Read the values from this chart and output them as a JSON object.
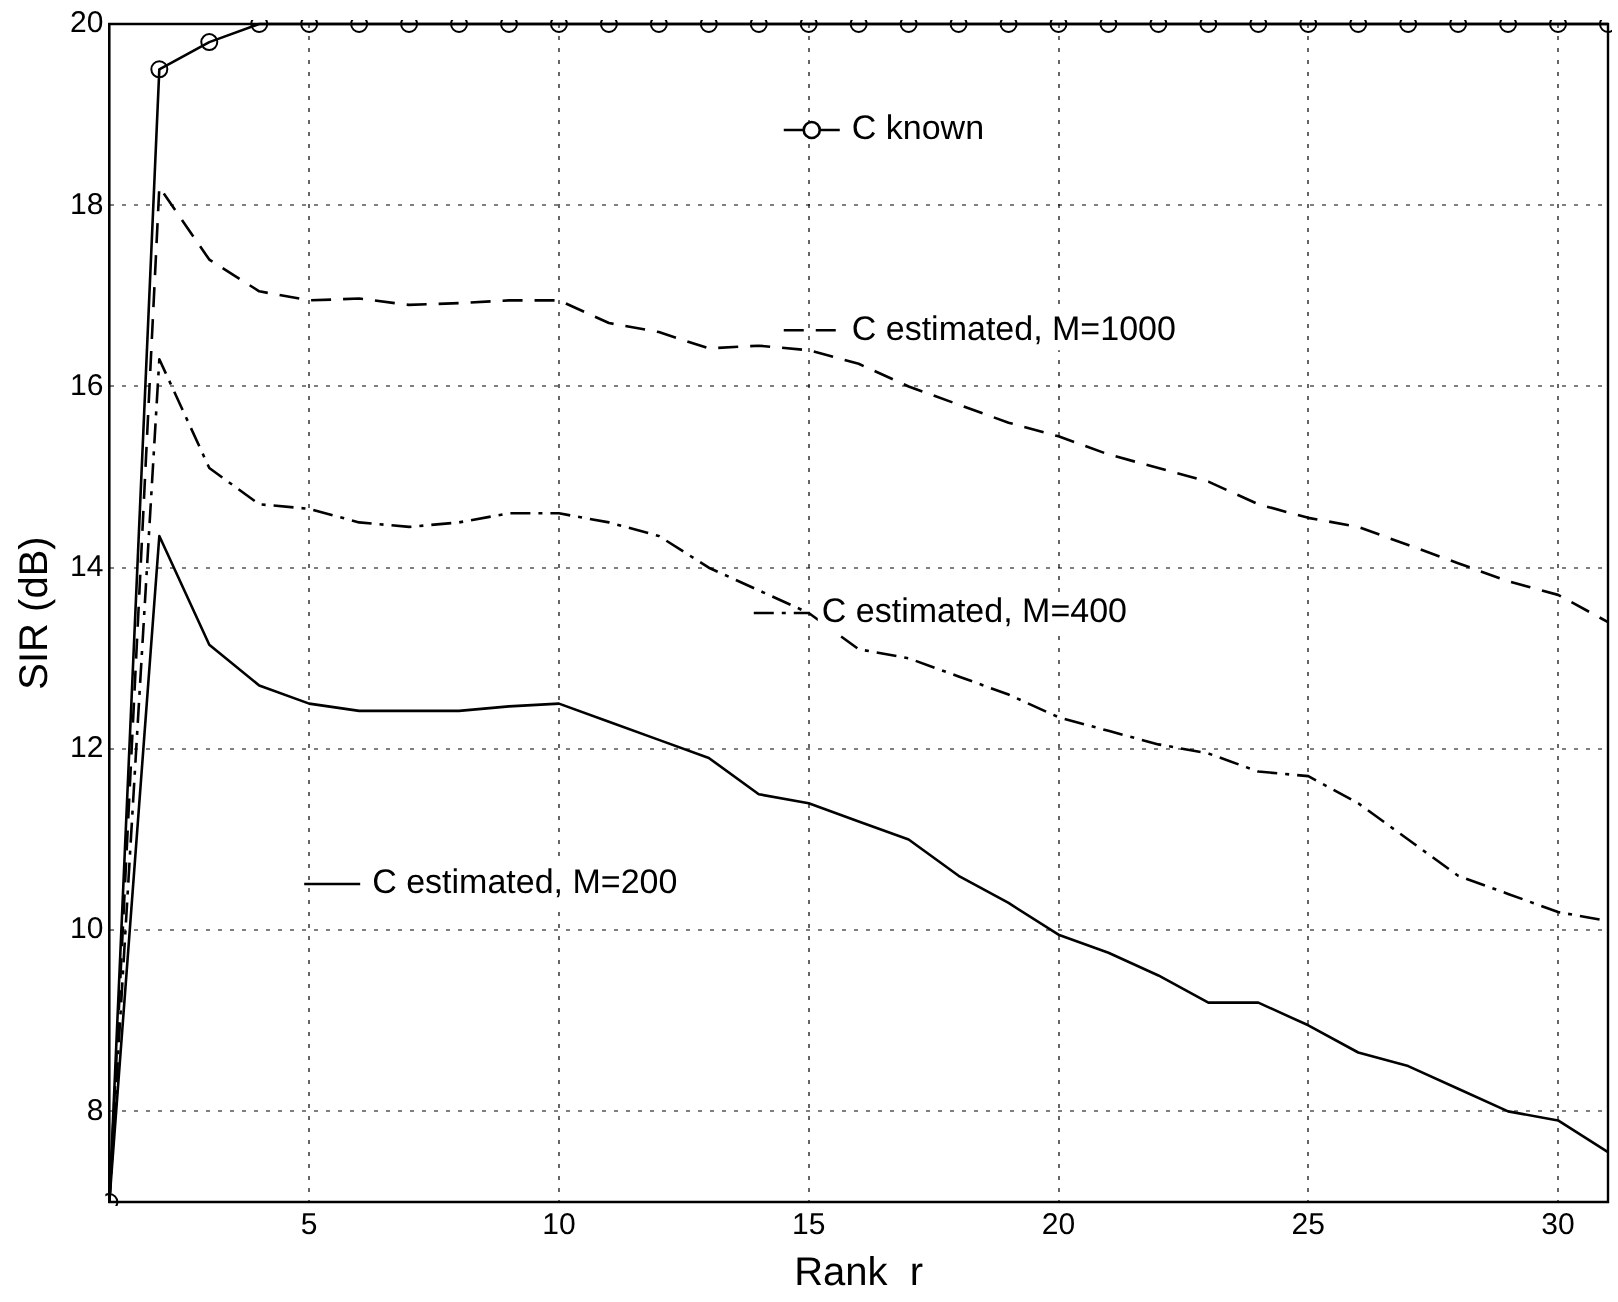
{
  "chart_data": {
    "type": "line",
    "xlabel": "Rank  r",
    "ylabel": "SIR (dB)",
    "x": [
      1,
      2,
      3,
      4,
      5,
      6,
      7,
      8,
      9,
      10,
      11,
      12,
      13,
      14,
      15,
      16,
      17,
      18,
      19,
      20,
      21,
      22,
      23,
      24,
      25,
      26,
      27,
      28,
      29,
      30,
      31
    ],
    "xlim": [
      1,
      31
    ],
    "xticks": [
      5,
      10,
      15,
      20,
      25,
      30
    ],
    "ylim": [
      7,
      20
    ],
    "yticks": [
      8,
      10,
      12,
      14,
      16,
      18,
      20
    ],
    "grid": true,
    "legend": "center",
    "series": [
      {
        "name": "C known",
        "color": "#000000",
        "marker": "circle",
        "line_style": "solid",
        "values": [
          7,
          19.5,
          19.8,
          20,
          20,
          20,
          20,
          20,
          20,
          20,
          20,
          20,
          20,
          20,
          20,
          20,
          20,
          20,
          20,
          20,
          20,
          20,
          20,
          20,
          20,
          20,
          20,
          20,
          20,
          20,
          20
        ]
      },
      {
        "name": "C estimated, M=1000",
        "color": "#000000",
        "marker": "none",
        "line_style": "dashed",
        "values": [
          7,
          18.2,
          17.4,
          17.05,
          16.95,
          16.97,
          16.9,
          16.92,
          16.95,
          16.95,
          16.7,
          16.6,
          16.42,
          16.45,
          16.4,
          16.25,
          16.0,
          15.8,
          15.6,
          15.45,
          15.25,
          15.1,
          14.95,
          14.7,
          14.55,
          14.45,
          14.25,
          14.05,
          13.85,
          13.7,
          13.4
        ]
      },
      {
        "name": "C estimated, M=400",
        "color": "#000000",
        "marker": "none",
        "line_style": "dashdot",
        "values": [
          7,
          16.3,
          15.1,
          14.7,
          14.65,
          14.5,
          14.45,
          14.5,
          14.6,
          14.6,
          14.5,
          14.35,
          14.0,
          13.75,
          13.5,
          13.1,
          13.0,
          12.8,
          12.6,
          12.35,
          12.2,
          12.05,
          11.95,
          11.75,
          11.7,
          11.4,
          11.0,
          10.6,
          10.4,
          10.2,
          10.1
        ]
      },
      {
        "name": "C estimated, M=200",
        "color": "#000000",
        "marker": "none",
        "line_style": "solid",
        "values": [
          7,
          14.35,
          13.15,
          12.7,
          12.5,
          12.42,
          12.42,
          12.42,
          12.47,
          12.5,
          12.3,
          12.1,
          11.9,
          11.5,
          11.4,
          11.2,
          11.0,
          10.6,
          10.3,
          9.95,
          9.75,
          9.5,
          9.2,
          9.2,
          8.95,
          8.65,
          8.5,
          8.25,
          8.0,
          7.9,
          7.55
        ]
      }
    ]
  }
}
